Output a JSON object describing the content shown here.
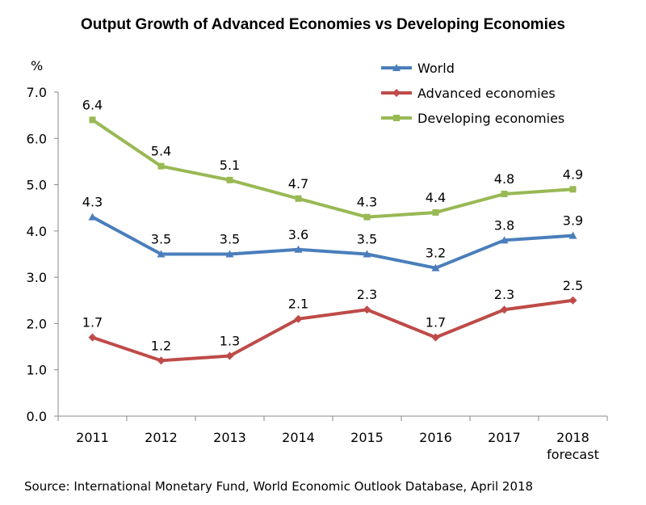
{
  "chart_data": {
    "type": "line",
    "title": "Output Growth of Advanced Economies vs Developing Economies",
    "ylabel": "%",
    "xlabel": "",
    "categories": [
      {
        "year": "2011",
        "sub": ""
      },
      {
        "year": "2012",
        "sub": ""
      },
      {
        "year": "2013",
        "sub": ""
      },
      {
        "year": "2014",
        "sub": ""
      },
      {
        "year": "2015",
        "sub": ""
      },
      {
        "year": "2016",
        "sub": ""
      },
      {
        "year": "2017",
        "sub": ""
      },
      {
        "year": "2018",
        "sub": "forecast"
      }
    ],
    "ylim": [
      0,
      7
    ],
    "yticks": [
      "0.0",
      "1.0",
      "2.0",
      "3.0",
      "4.0",
      "5.0",
      "6.0",
      "7.0"
    ],
    "grid": false,
    "legend_position": "top-right",
    "series": [
      {
        "name": "World",
        "color": "#4a7ebb",
        "marker": "triangle",
        "values": [
          4.3,
          3.5,
          3.5,
          3.6,
          3.5,
          3.2,
          3.8,
          3.9
        ],
        "labels": [
          "4.3",
          "3.5",
          "3.5",
          "3.6",
          "3.5",
          "3.2",
          "3.8",
          "3.9"
        ]
      },
      {
        "name": "Advanced economies",
        "color": "#be4b48",
        "marker": "diamond",
        "values": [
          1.7,
          1.2,
          1.3,
          2.1,
          2.3,
          1.7,
          2.3,
          2.5
        ],
        "labels": [
          "1.7",
          "1.2",
          "1.3",
          "2.1",
          "2.3",
          "1.7",
          "2.3",
          "2.5"
        ]
      },
      {
        "name": "Developing economies",
        "color": "#98b954",
        "marker": "square",
        "values": [
          6.4,
          5.4,
          5.1,
          4.7,
          4.3,
          4.4,
          4.8,
          4.9
        ],
        "labels": [
          "6.4",
          "5.4",
          "5.1",
          "4.7",
          "4.3",
          "4.4",
          "4.8",
          "4.9"
        ]
      }
    ],
    "source": "Source: International Monetary Fund, World Economic Outlook Database, April 2018"
  }
}
